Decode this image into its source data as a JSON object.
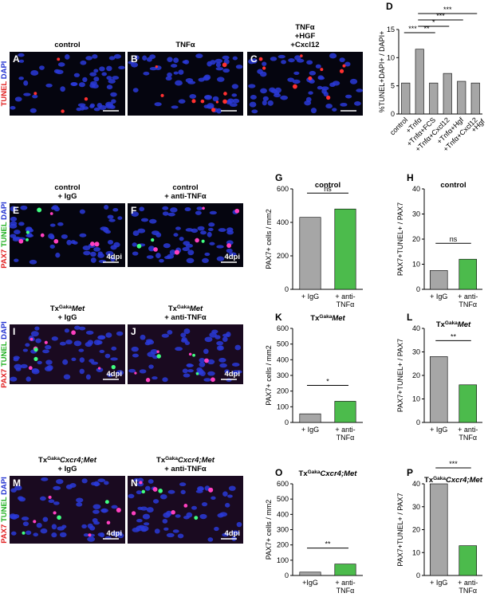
{
  "panels": [
    {
      "letter": "A",
      "label": [
        [
          {
            "t": "control"
          }
        ]
      ]
    },
    {
      "letter": "B",
      "label": [
        [
          {
            "t": "TNFα"
          }
        ]
      ]
    },
    {
      "letter": "C",
      "label": [
        [
          {
            "t": "TNFα"
          }
        ],
        [
          {
            "t": "+HGF"
          }
        ],
        [
          {
            "t": "+Cxcl12"
          }
        ]
      ]
    },
    {
      "letter": "E",
      "label": [
        [
          {
            "t": "control"
          }
        ],
        [
          {
            "t": "+ IgG"
          }
        ]
      ]
    },
    {
      "letter": "F",
      "label": [
        [
          {
            "t": "control"
          }
        ],
        [
          {
            "t": "+ anti-TNFα"
          }
        ]
      ]
    },
    {
      "letter": "I",
      "label": [
        [
          {
            "t": "Tx"
          },
          {
            "t": "Gaka",
            "s": "sup"
          },
          {
            "t": "Met",
            "s": "i"
          }
        ],
        [
          {
            "t": "+ IgG"
          }
        ]
      ]
    },
    {
      "letter": "J",
      "label": [
        [
          {
            "t": "Tx"
          },
          {
            "t": "Gaka",
            "s": "sup"
          },
          {
            "t": "Met",
            "s": "i"
          }
        ],
        [
          {
            "t": "+ anti-TNFα"
          }
        ]
      ]
    },
    {
      "letter": "M",
      "label": [
        [
          {
            "t": "Tx"
          },
          {
            "t": "Gaka",
            "s": "sup"
          },
          {
            "t": "Cxcr4;Met",
            "s": "i"
          }
        ],
        [
          {
            "t": "+ IgG"
          }
        ]
      ]
    },
    {
      "letter": "N",
      "label": [
        [
          {
            "t": "Tx"
          },
          {
            "t": "Gaka",
            "s": "sup"
          },
          {
            "t": "Cxcr4;Met",
            "s": "i"
          }
        ],
        [
          {
            "t": "+ anti-TNFα"
          }
        ]
      ]
    }
  ],
  "row_labels": [
    [
      {
        "t": "TUNEL",
        "c": "#e02020"
      },
      {
        "t": "DAPI",
        "c": "#2030d0"
      }
    ],
    [
      {
        "t": "PAX7",
        "c": "#e02020"
      },
      {
        "t": "TUNEL",
        "c": "#20b020"
      },
      {
        "t": "DAPI",
        "c": "#2030d0"
      }
    ],
    [
      {
        "t": "PAX7",
        "c": "#e02020"
      },
      {
        "t": "TUNEL",
        "c": "#20b020"
      },
      {
        "t": "DAPI",
        "c": "#2030d0"
      }
    ],
    [
      {
        "t": "PAX7",
        "c": "#e02020"
      },
      {
        "t": "TUNEL",
        "c": "#20b020"
      },
      {
        "t": "DAPI",
        "c": "#2030d0"
      }
    ]
  ],
  "scale_label": "4dpi",
  "chart_data": [
    {
      "type": "bar",
      "letter": "D",
      "title": [],
      "ylabel": "%TUNEL+DAPI+ / DAPI+",
      "categories": [
        [
          "control"
        ],
        [
          "+Tnfα"
        ],
        [
          "+Tnfα+FCS"
        ],
        [
          "+Tnfα+Cxcl12"
        ],
        [
          "+Tnfα+Hgf"
        ],
        [
          "+Tnfα+Cxcl12",
          "+Hgf"
        ]
      ],
      "values": [
        5.5,
        11.5,
        5.5,
        7.2,
        5.8,
        5.5
      ],
      "colors": [
        "#a6a6a6",
        "#a6a6a6",
        "#a6a6a6",
        "#a6a6a6",
        "#a6a6a6",
        "#a6a6a6"
      ],
      "ylim": [
        0,
        15
      ],
      "yticks": [
        0,
        5,
        10,
        15
      ],
      "comparisons": [
        {
          "from": 0,
          "to": 1,
          "label": "***"
        },
        {
          "from": 1,
          "to": 2,
          "label": "**"
        },
        {
          "from": 1,
          "to": 3,
          "label": "*"
        },
        {
          "from": 1,
          "to": 4,
          "label": "***"
        },
        {
          "from": 1,
          "to": 5,
          "label": "***"
        }
      ]
    },
    {
      "type": "bar",
      "letter": "G",
      "title": [
        {
          "t": "control"
        }
      ],
      "ylabel": "PAX7+ cells / mm2",
      "categories": [
        [
          "+ IgG"
        ],
        [
          "+ anti-",
          "TNFα"
        ]
      ],
      "values": [
        430,
        480
      ],
      "colors": [
        "#a6a6a6",
        "#4cbb4c"
      ],
      "ylim": [
        0,
        600
      ],
      "yticks": [
        0,
        200,
        400,
        600
      ],
      "comparisons": [
        {
          "from": 0,
          "to": 1,
          "label": "ns"
        }
      ]
    },
    {
      "type": "bar",
      "letter": "H",
      "title": [
        {
          "t": "control"
        }
      ],
      "ylabel": "PAX7+TUNEL+ / PAX7",
      "categories": [
        [
          "+ IgG"
        ],
        [
          "+ anti-",
          "TNFα"
        ]
      ],
      "values": [
        7.5,
        12
      ],
      "colors": [
        "#a6a6a6",
        "#4cbb4c"
      ],
      "ylim": [
        0,
        40
      ],
      "yticks": [
        0,
        10,
        20,
        30,
        40
      ],
      "comparisons": [
        {
          "from": 0,
          "to": 1,
          "label": "ns"
        }
      ]
    },
    {
      "type": "bar",
      "letter": "K",
      "title": [
        {
          "t": "Tx"
        },
        {
          "t": "Gaka",
          "s": "sup"
        },
        {
          "t": "Met",
          "s": "i"
        }
      ],
      "ylabel": "PAX7+ cells / mm2",
      "categories": [
        [
          "+ IgG"
        ],
        [
          "+ anti-",
          "TNFα"
        ]
      ],
      "values": [
        55,
        135
      ],
      "colors": [
        "#a6a6a6",
        "#4cbb4c"
      ],
      "ylim": [
        0,
        600
      ],
      "yticks": [
        0,
        100,
        200,
        300,
        400,
        500,
        600
      ],
      "comparisons": [
        {
          "from": 0,
          "to": 1,
          "label": "*"
        }
      ]
    },
    {
      "type": "bar",
      "letter": "L",
      "title": [
        {
          "t": "Tx"
        },
        {
          "t": "Gaka",
          "s": "sup"
        },
        {
          "t": "Met",
          "s": "i"
        }
      ],
      "ylabel": "PAX7+TUNEL+ / PAX7",
      "categories": [
        [
          "+ IgG"
        ],
        [
          "+ anti-",
          "TNFα"
        ]
      ],
      "values": [
        28,
        16
      ],
      "colors": [
        "#a6a6a6",
        "#4cbb4c"
      ],
      "ylim": [
        0,
        40
      ],
      "yticks": [
        0,
        10,
        20,
        30,
        40
      ],
      "comparisons": [
        {
          "from": 0,
          "to": 1,
          "label": "**"
        }
      ]
    },
    {
      "type": "bar",
      "letter": "O",
      "title": [
        {
          "t": "Tx"
        },
        {
          "t": "Gaka",
          "s": "sup"
        },
        {
          "t": "Cxcr4;Met",
          "s": "i"
        }
      ],
      "ylabel": "PAX7+ cells / mm2",
      "categories": [
        [
          "+IgG"
        ],
        [
          "+ anti-",
          "TNFα"
        ]
      ],
      "values": [
        22,
        75
      ],
      "colors": [
        "#a6a6a6",
        "#4cbb4c"
      ],
      "ylim": [
        0,
        600
      ],
      "yticks": [
        0,
        100,
        200,
        300,
        400,
        500,
        600
      ],
      "comparisons": [
        {
          "from": 0,
          "to": 1,
          "label": "**"
        }
      ]
    },
    {
      "type": "bar",
      "letter": "P",
      "title": [
        {
          "t": "Tx"
        },
        {
          "t": "Gaka",
          "s": "sup"
        },
        {
          "t": "Cxcr4;Met",
          "s": "i"
        }
      ],
      "ylabel": "PAX7+TUNEL+ / PAX7",
      "categories": [
        [
          "+ IgG"
        ],
        [
          "+ anti-",
          "TNFα"
        ]
      ],
      "values": [
        40,
        13
      ],
      "colors": [
        "#a6a6a6",
        "#4cbb4c"
      ],
      "ylim": [
        0,
        40
      ],
      "yticks": [
        0,
        10,
        20,
        30,
        40
      ],
      "comparisons": [
        {
          "from": 0,
          "to": 1,
          "label": "***"
        }
      ]
    }
  ]
}
